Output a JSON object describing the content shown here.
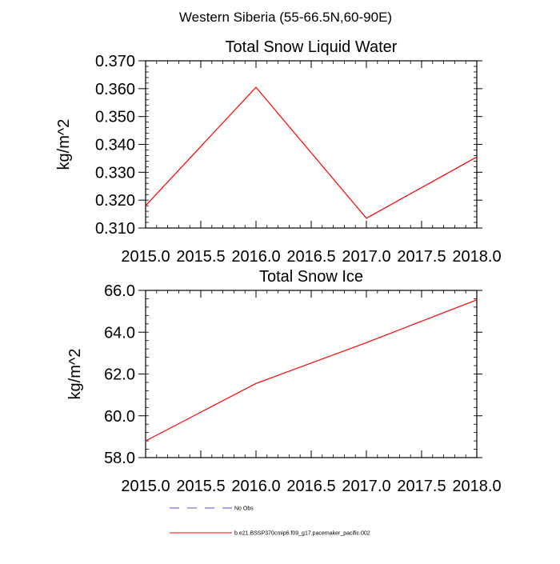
{
  "figure": {
    "title": "Western Siberia (55-66.5N,60-90E)"
  },
  "chart_data": [
    {
      "type": "line",
      "title": "Total Snow Liquid Water",
      "xlabel": "",
      "ylabel": "kg/m^2",
      "xlim": [
        2015.0,
        2018.0
      ],
      "ylim": [
        0.31,
        0.37
      ],
      "x_ticks": [
        "2015.0",
        "2015.5",
        "2016.0",
        "2016.5",
        "2017.0",
        "2017.5",
        "2018.0"
      ],
      "y_ticks": [
        "0.310",
        "0.320",
        "0.330",
        "0.340",
        "0.350",
        "0.360",
        "0.370"
      ],
      "x": [
        2015,
        2016,
        2017,
        2018
      ],
      "series": [
        {
          "values": [
            0.318,
            0.3605,
            0.3135,
            0.3355
          ],
          "color": "#ff0000"
        }
      ],
      "grid": false
    },
    {
      "type": "line",
      "title": "Total Snow Ice",
      "xlabel": "",
      "ylabel": "kg/m^2",
      "xlim": [
        2015.0,
        2018.0
      ],
      "ylim": [
        58.0,
        66.0
      ],
      "x_ticks": [
        "2015.0",
        "2015.5",
        "2016.0",
        "2016.5",
        "2017.0",
        "2017.5",
        "2018.0"
      ],
      "y_ticks": [
        "58.0",
        "60.0",
        "62.0",
        "64.0",
        "66.0"
      ],
      "x": [
        2015,
        2016,
        2017,
        2018
      ],
      "series": [
        {
          "values": [
            58.8,
            61.55,
            63.5,
            65.55
          ],
          "color": "#ff0000"
        }
      ],
      "grid": false
    }
  ],
  "legend": {
    "placement": "bottom",
    "entries": [
      {
        "label": "No Obs",
        "color": "#5050c8",
        "style": "dashed"
      },
      {
        "label": "b.e21.BSSP370cmip6.f09_g17.pacemaker_pacific.002",
        "color": "#ff0000",
        "style": "solid"
      }
    ]
  }
}
